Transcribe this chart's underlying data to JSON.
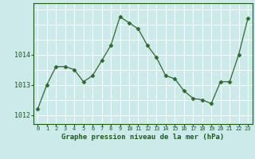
{
  "x": [
    0,
    1,
    2,
    3,
    4,
    5,
    6,
    7,
    8,
    9,
    10,
    11,
    12,
    13,
    14,
    15,
    16,
    17,
    18,
    19,
    20,
    21,
    22,
    23
  ],
  "y": [
    1012.2,
    1013.0,
    1013.6,
    1013.6,
    1013.5,
    1013.1,
    1013.3,
    1013.8,
    1014.3,
    1015.25,
    1015.05,
    1014.85,
    1014.3,
    1013.9,
    1013.3,
    1013.2,
    1012.8,
    1012.55,
    1012.5,
    1012.38,
    1013.1,
    1013.1,
    1014.0,
    1015.2
  ],
  "line_color": "#2d6a2d",
  "marker": "D",
  "marker_size": 2.5,
  "bg_color": "#cceaea",
  "grid_color": "#ffffff",
  "label_color": "#1a5c1a",
  "ylabel_values": [
    1012,
    1013,
    1014
  ],
  "xlabel_label": "Graphe pression niveau de la mer (hPa)",
  "xlim": [
    -0.5,
    23.5
  ],
  "ylim": [
    1011.7,
    1015.7
  ]
}
